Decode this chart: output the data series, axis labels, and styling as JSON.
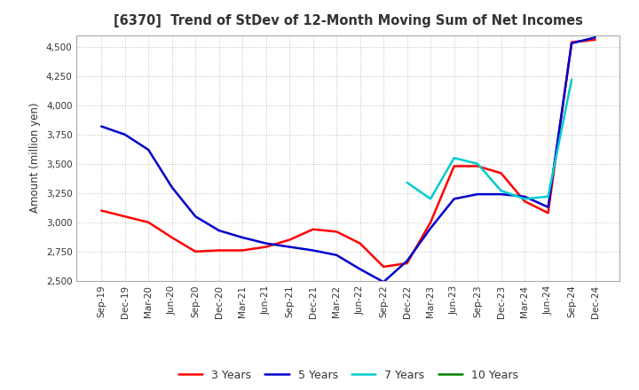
{
  "title": "[6370]  Trend of StDev of 12-Month Moving Sum of Net Incomes",
  "ylabel": "Amount (million yen)",
  "ylim": [
    2500,
    4600
  ],
  "yticks": [
    2500,
    2750,
    3000,
    3250,
    3500,
    3750,
    4000,
    4250,
    4500
  ],
  "background_color": "#ffffff",
  "grid_color": "#bbbbbb",
  "x_labels": [
    "Sep-19",
    "Dec-19",
    "Mar-20",
    "Jun-20",
    "Sep-20",
    "Dec-20",
    "Mar-21",
    "Jun-21",
    "Sep-21",
    "Dec-21",
    "Mar-22",
    "Jun-22",
    "Sep-22",
    "Dec-22",
    "Mar-23",
    "Jun-23",
    "Sep-23",
    "Dec-23",
    "Mar-24",
    "Jun-24",
    "Sep-24",
    "Dec-24"
  ],
  "series": {
    "3 Years": {
      "color": "#ff0000",
      "data": [
        3100,
        3050,
        3000,
        2870,
        2750,
        2760,
        2760,
        2790,
        2850,
        2940,
        2920,
        2820,
        2620,
        2650,
        3000,
        3480,
        3480,
        3420,
        3180,
        3080,
        4540,
        4560
      ]
    },
    "5 Years": {
      "color": "#0000cc",
      "data": [
        3820,
        3750,
        3620,
        3300,
        3050,
        2930,
        2870,
        2820,
        2790,
        2760,
        2720,
        2600,
        2490,
        2670,
        2950,
        3200,
        3240,
        3240,
        3220,
        3130,
        4530,
        4580
      ]
    },
    "7 Years": {
      "color": "#00cccc",
      "data": [
        null,
        null,
        null,
        null,
        null,
        null,
        null,
        null,
        null,
        null,
        null,
        null,
        null,
        3340,
        3200,
        3550,
        3500,
        3270,
        3200,
        3220,
        4220,
        null
      ]
    },
    "10 Years": {
      "color": "#008000",
      "data": [
        null,
        null,
        null,
        null,
        null,
        null,
        null,
        null,
        null,
        null,
        null,
        null,
        null,
        null,
        null,
        null,
        null,
        null,
        null,
        null,
        null,
        null
      ]
    }
  },
  "legend_labels": [
    "3 Years",
    "5 Years",
    "7 Years",
    "10 Years"
  ],
  "legend_colors": [
    "#ff0000",
    "#0000cc",
    "#00cccc",
    "#008000"
  ]
}
